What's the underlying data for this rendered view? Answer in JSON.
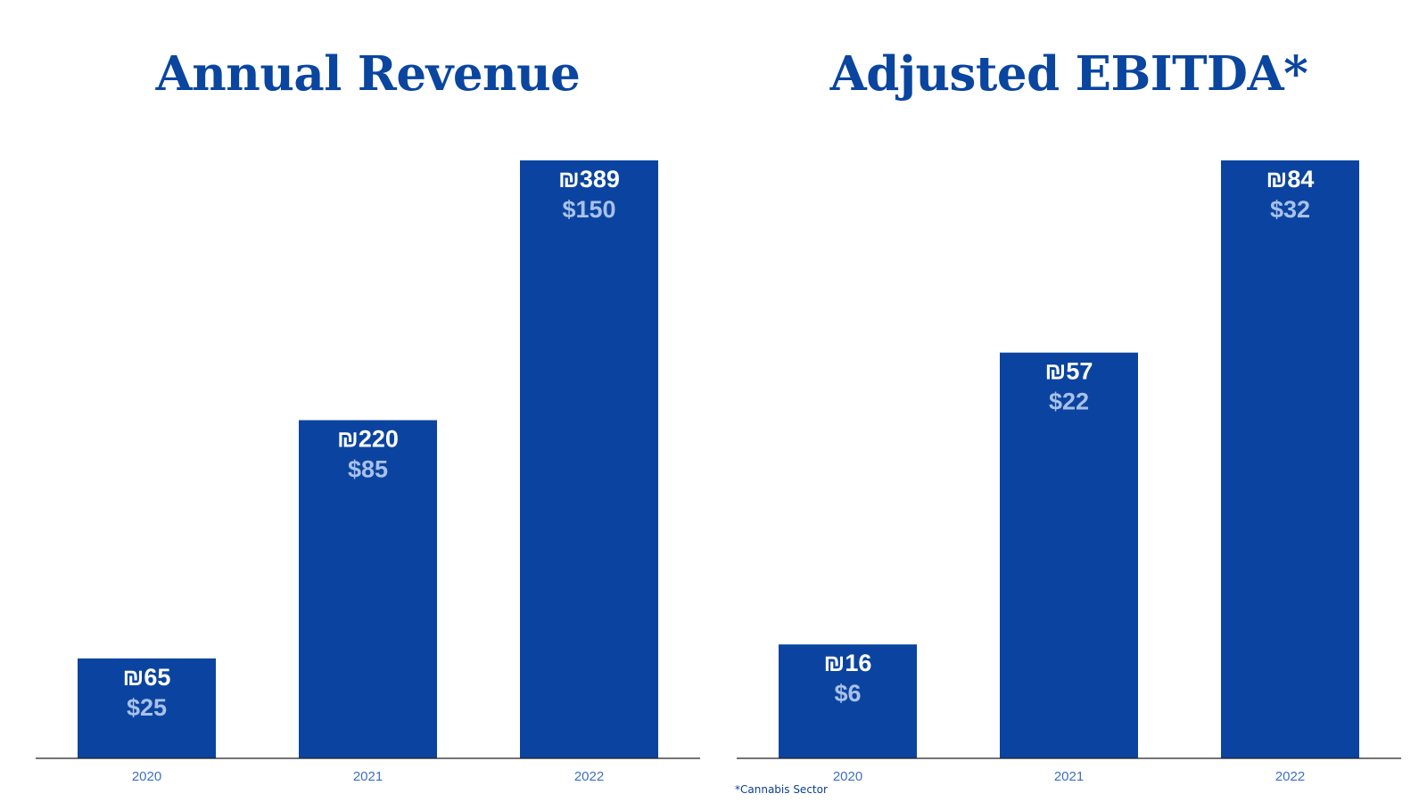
{
  "colors": {
    "bar": "#0b44a0",
    "title": "#0a45a0",
    "label_primary": "#ffffff",
    "label_secondary": "#a9c1ea",
    "tick": "#3f6fc2"
  },
  "footnote": "*Cannabis Sector",
  "chart_data": [
    {
      "type": "bar",
      "title": "Annual Revenue",
      "categories": [
        "2020",
        "2021",
        "2022"
      ],
      "series": [
        {
          "values": [
            65,
            220,
            389
          ],
          "labels": [
            "₪65",
            "₪220",
            "₪389"
          ]
        },
        {
          "values": [
            25,
            85,
            150
          ],
          "labels": [
            "$25",
            "$85",
            "$150"
          ]
        }
      ],
      "xlabel": "",
      "ylabel": "",
      "grid": false,
      "legend": "none"
    },
    {
      "type": "bar",
      "title": "Adjusted EBITDA*",
      "categories": [
        "2020",
        "2021",
        "2022"
      ],
      "series": [
        {
          "values": [
            16,
            57,
            84
          ],
          "labels": [
            "₪16",
            "₪57",
            "₪84"
          ]
        },
        {
          "values": [
            6,
            22,
            32
          ],
          "labels": [
            "$6",
            "$22",
            "$32"
          ]
        }
      ],
      "xlabel": "",
      "ylabel": "",
      "grid": false,
      "legend": "none"
    }
  ]
}
